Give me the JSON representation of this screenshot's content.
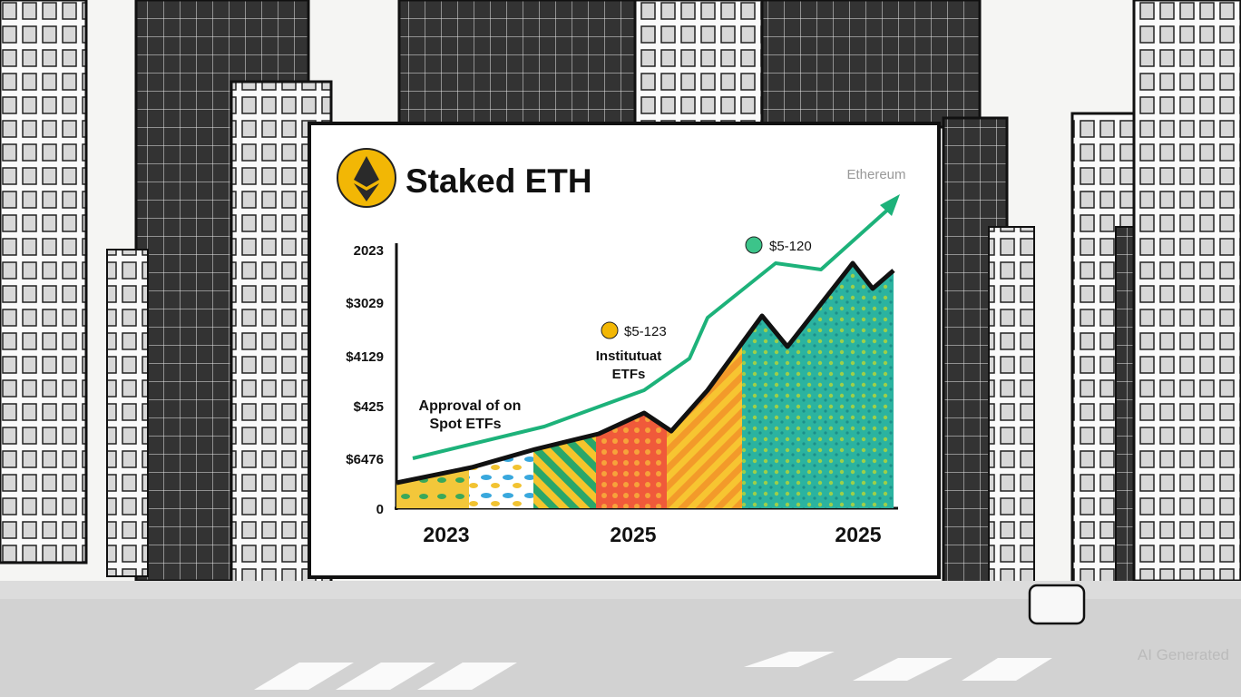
{
  "billboard": {
    "title": "Staked ETH",
    "brand": "Ethereum",
    "y_labels": [
      "2023",
      "$3029",
      "$4129",
      "$425",
      "$6476",
      "0"
    ],
    "x_labels": [
      "2023",
      "2025",
      "2025"
    ],
    "annotations": {
      "top_price": "$5-120",
      "mid_price": "$5-123",
      "mid_note": [
        "Institutuat",
        "ETFs"
      ],
      "left_note": [
        "Approval of on",
        "Spot ETFs"
      ]
    }
  },
  "watermark": "AI Generated"
}
